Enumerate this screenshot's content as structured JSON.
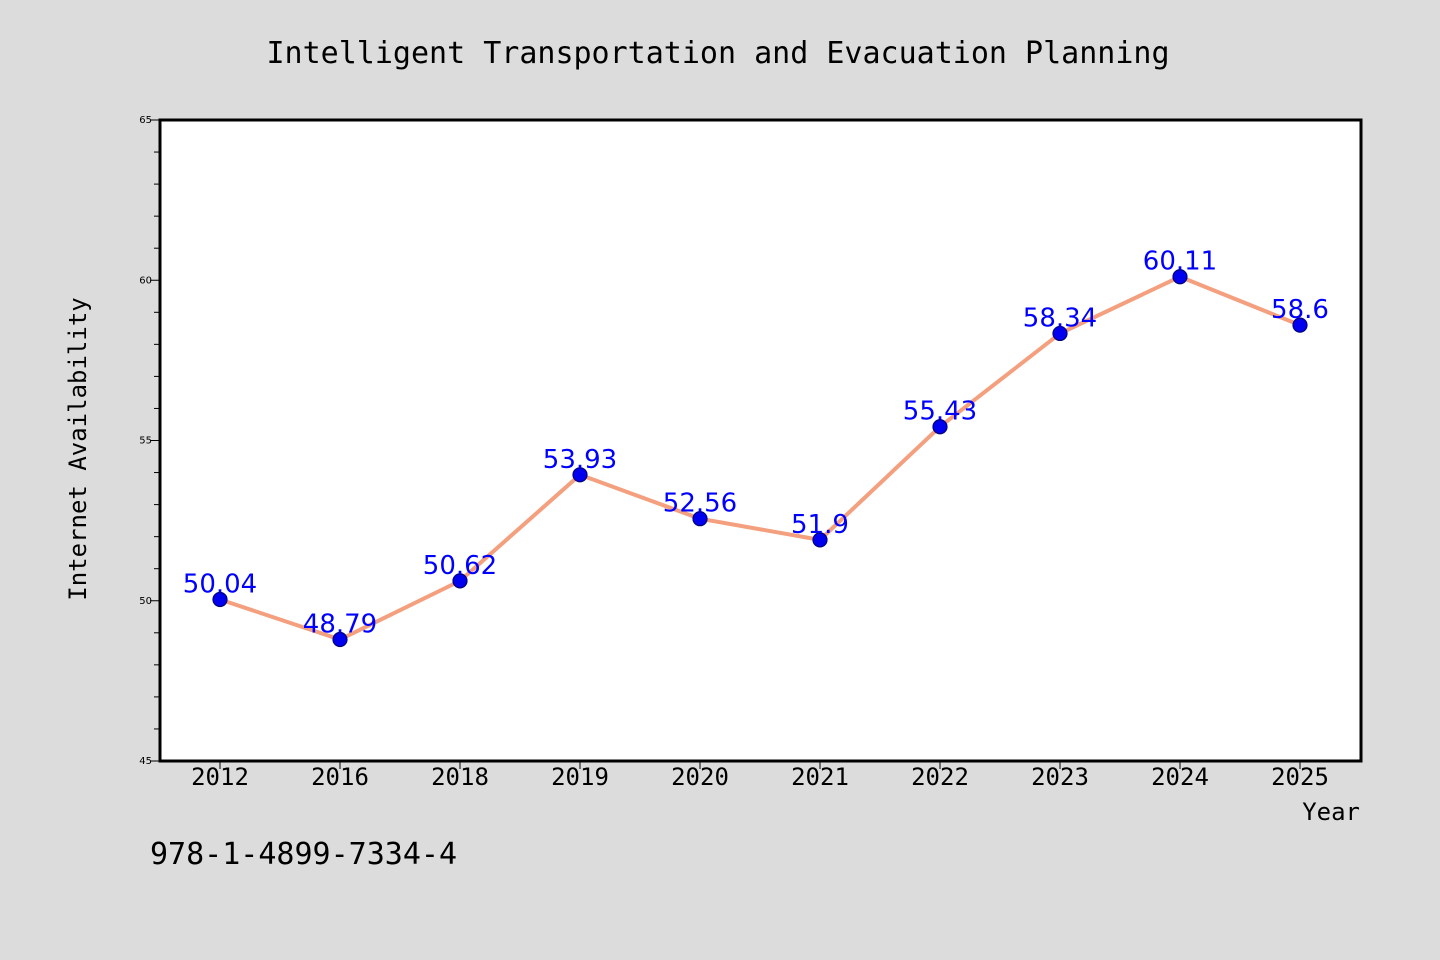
{
  "page": {
    "background": "#dcdcdc",
    "footer_code": "978-1-4899-7334-4"
  },
  "chart_data": {
    "type": "line",
    "title": "Intelligent Transportation and Evacuation Planning",
    "xlabel": "Year",
    "ylabel": "Internet Availability",
    "categories": [
      "2012",
      "2016",
      "2018",
      "2019",
      "2020",
      "2021",
      "2022",
      "2023",
      "2024",
      "2025"
    ],
    "series": [
      {
        "values": [
          50.04,
          48.79,
          50.62,
          53.93,
          52.56,
          51.9,
          55.43,
          58.34,
          60.11,
          58.6
        ],
        "data_labels": [
          "50.04",
          "48.79",
          "50.62",
          "53.93",
          "52.56",
          "51.9",
          "55.43",
          "58.34",
          "60.11",
          "58.6"
        ]
      }
    ],
    "ylim": [
      45,
      65
    ],
    "yticks": [
      "45",
      "50",
      "55",
      "60",
      "65"
    ],
    "grid": false,
    "colors": {
      "line": "#f4a07f",
      "marker": "#0000ee",
      "marker_edge": "#000080",
      "data_label": "#0000ff",
      "plot_bg": "#ffffff",
      "frame": "#000000"
    }
  }
}
